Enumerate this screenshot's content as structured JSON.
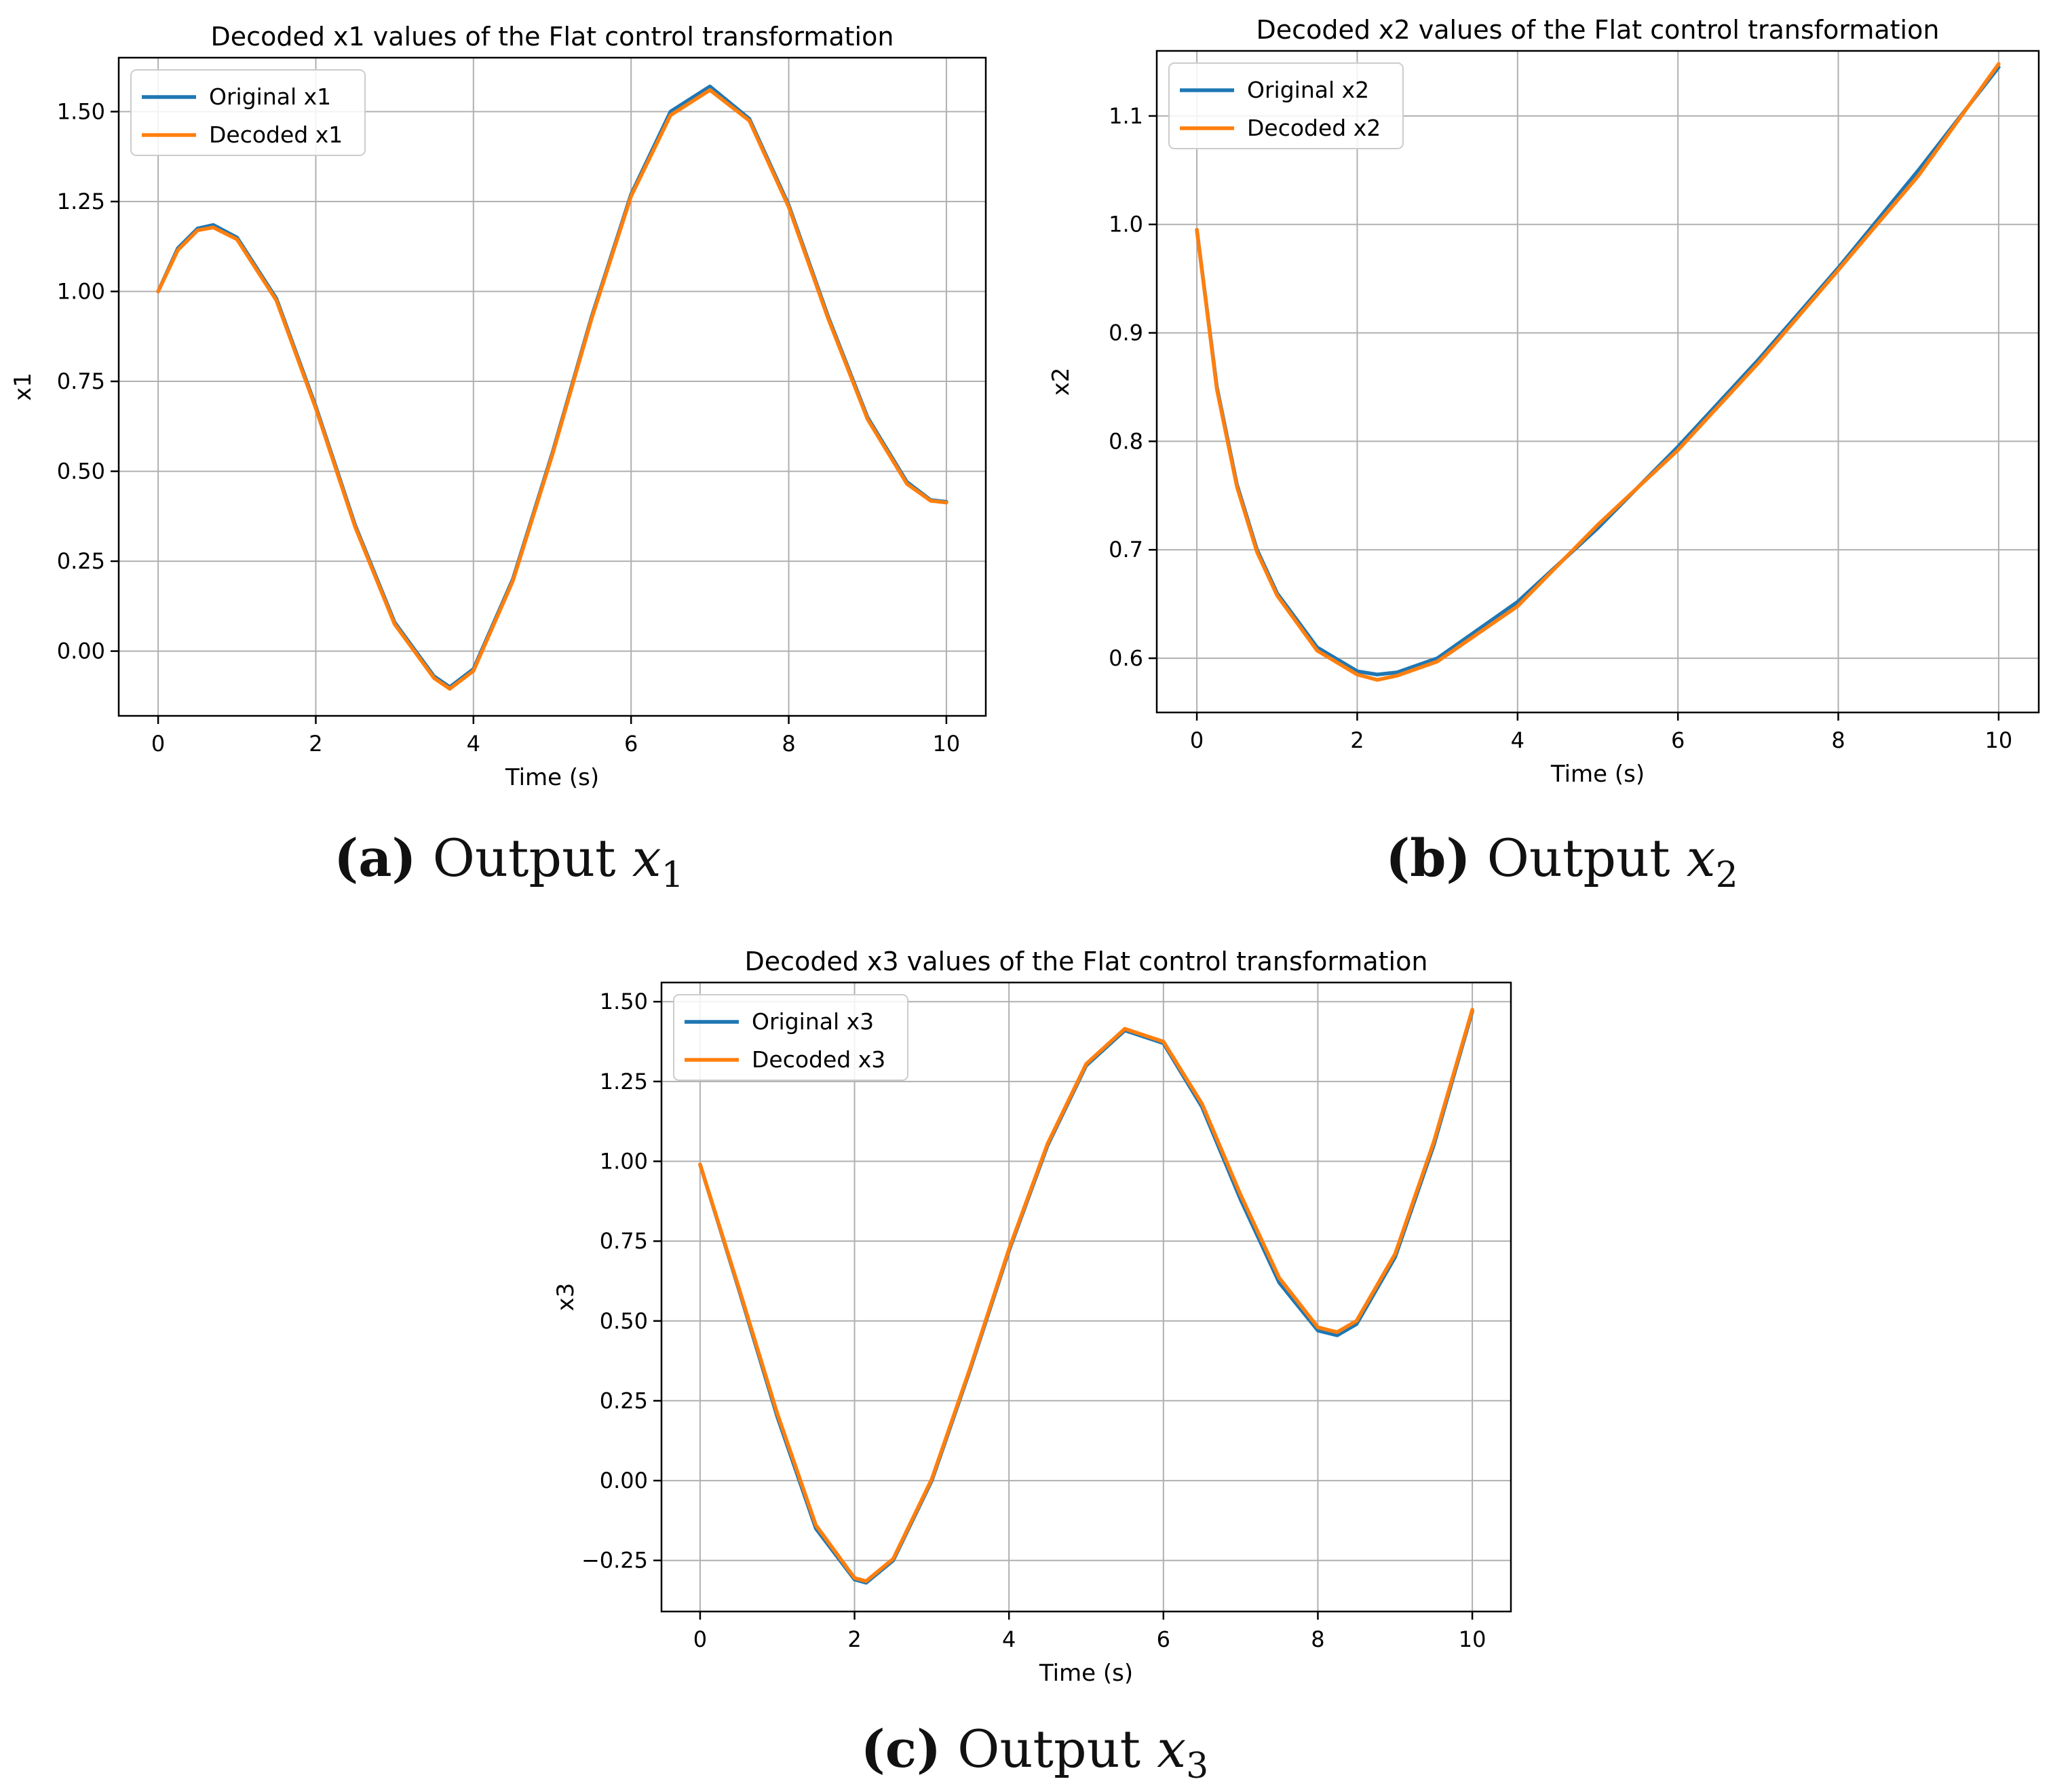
{
  "chart_data": [
    {
      "type": "line",
      "title": "Decoded x1 values of the Flat control transformation",
      "xlabel": "Time (s)",
      "ylabel": "x1",
      "xlim": [
        -0.5,
        10.5
      ],
      "ylim": [
        -0.18,
        1.65
      ],
      "xticks": [
        0,
        2,
        4,
        6,
        8,
        10
      ],
      "xtick_labels": [
        "0",
        "2",
        "4",
        "6",
        "8",
        "10"
      ],
      "yticks": [
        0.0,
        0.25,
        0.5,
        0.75,
        1.0,
        1.25,
        1.5
      ],
      "ytick_labels": [
        "0.00",
        "0.25",
        "0.50",
        "0.75",
        "1.00",
        "1.25",
        "1.50"
      ],
      "grid": true,
      "legend": "upper-left",
      "caption": {
        "label": "(a)",
        "text": "Output",
        "var": "x",
        "sub": "1"
      },
      "x": [
        0,
        0.25,
        0.5,
        0.7,
        1.0,
        1.5,
        2.0,
        2.5,
        3.0,
        3.5,
        3.7,
        4.0,
        4.5,
        5.0,
        5.5,
        6.0,
        6.5,
        7.0,
        7.5,
        8.0,
        8.5,
        9.0,
        9.5,
        9.8,
        10.0
      ],
      "series": [
        {
          "name": "Original x1",
          "color": "#1f77b4",
          "values": [
            1.0,
            1.12,
            1.175,
            1.185,
            1.15,
            0.98,
            0.68,
            0.35,
            0.08,
            -0.07,
            -0.1,
            -0.05,
            0.2,
            0.55,
            0.93,
            1.27,
            1.5,
            1.57,
            1.48,
            1.24,
            0.93,
            0.65,
            0.47,
            0.42,
            0.415
          ]
        },
        {
          "name": "Decoded x1",
          "color": "#ff7f0e",
          "values": [
            1.0,
            1.115,
            1.17,
            1.178,
            1.145,
            0.975,
            0.675,
            0.345,
            0.075,
            -0.075,
            -0.105,
            -0.055,
            0.195,
            0.545,
            0.925,
            1.265,
            1.49,
            1.56,
            1.475,
            1.235,
            0.925,
            0.645,
            0.465,
            0.418,
            0.413
          ]
        }
      ]
    },
    {
      "type": "line",
      "title": "Decoded x2 values of the Flat control transformation",
      "xlabel": "Time (s)",
      "ylabel": "x2",
      "xlim": [
        -0.5,
        10.5
      ],
      "ylim": [
        0.55,
        1.16
      ],
      "xticks": [
        0,
        2,
        4,
        6,
        8,
        10
      ],
      "xtick_labels": [
        "0",
        "2",
        "4",
        "6",
        "8",
        "10"
      ],
      "yticks": [
        0.6,
        0.7,
        0.8,
        0.9,
        1.0,
        1.1
      ],
      "ytick_labels": [
        "0.6",
        "0.7",
        "0.8",
        "0.9",
        "1.0",
        "1.1"
      ],
      "grid": true,
      "legend": "upper-left",
      "caption": {
        "label": "(b)",
        "text": "Output",
        "var": "x",
        "sub": "2"
      },
      "x": [
        0,
        0.25,
        0.5,
        0.75,
        1.0,
        1.5,
        2.0,
        2.25,
        2.5,
        3.0,
        4.0,
        5.0,
        6.0,
        7.0,
        8.0,
        9.0,
        10.0
      ],
      "series": [
        {
          "name": "Original x2",
          "color": "#1f77b4",
          "values": [
            0.995,
            0.85,
            0.76,
            0.7,
            0.66,
            0.61,
            0.588,
            0.585,
            0.587,
            0.6,
            0.652,
            0.72,
            0.795,
            0.875,
            0.96,
            1.05,
            1.145
          ]
        },
        {
          "name": "Decoded x2",
          "color": "#ff7f0e",
          "values": [
            0.995,
            0.848,
            0.758,
            0.698,
            0.658,
            0.607,
            0.585,
            0.58,
            0.584,
            0.597,
            0.648,
            0.723,
            0.792,
            0.872,
            0.958,
            1.045,
            1.148
          ]
        }
      ]
    },
    {
      "type": "line",
      "title": "Decoded x3 values of the Flat control transformation",
      "xlabel": "Time (s)",
      "ylabel": "x3",
      "xlim": [
        -0.5,
        10.5
      ],
      "ylim": [
        -0.41,
        1.56
      ],
      "xticks": [
        0,
        2,
        4,
        6,
        8,
        10
      ],
      "xtick_labels": [
        "0",
        "2",
        "4",
        "6",
        "8",
        "10"
      ],
      "yticks": [
        -0.25,
        0.0,
        0.25,
        0.5,
        0.75,
        1.0,
        1.25,
        1.5
      ],
      "ytick_labels": [
        "−0.25",
        "0.00",
        "0.25",
        "0.50",
        "0.75",
        "1.00",
        "1.25",
        "1.50"
      ],
      "grid": true,
      "legend": "upper-left",
      "caption": {
        "label": "(c)",
        "text": "Output",
        "var": "x",
        "sub": "3"
      },
      "x": [
        0,
        0.5,
        1.0,
        1.5,
        2.0,
        2.15,
        2.5,
        3.0,
        3.5,
        4.0,
        4.5,
        5.0,
        5.5,
        6.0,
        6.5,
        7.0,
        7.5,
        8.0,
        8.25,
        8.5,
        9.0,
        9.5,
        10.0
      ],
      "series": [
        {
          "name": "Original x3",
          "color": "#1f77b4",
          "values": [
            0.99,
            0.6,
            0.2,
            -0.15,
            -0.31,
            -0.32,
            -0.25,
            0.0,
            0.35,
            0.72,
            1.05,
            1.3,
            1.41,
            1.37,
            1.17,
            0.88,
            0.62,
            0.47,
            0.455,
            0.49,
            0.7,
            1.05,
            1.47
          ]
        },
        {
          "name": "Decoded x3",
          "color": "#ff7f0e",
          "values": [
            0.99,
            0.605,
            0.21,
            -0.14,
            -0.305,
            -0.315,
            -0.245,
            0.005,
            0.355,
            0.725,
            1.055,
            1.305,
            1.415,
            1.375,
            1.18,
            0.895,
            0.635,
            0.48,
            0.465,
            0.5,
            0.71,
            1.06,
            1.475
          ]
        }
      ]
    }
  ]
}
